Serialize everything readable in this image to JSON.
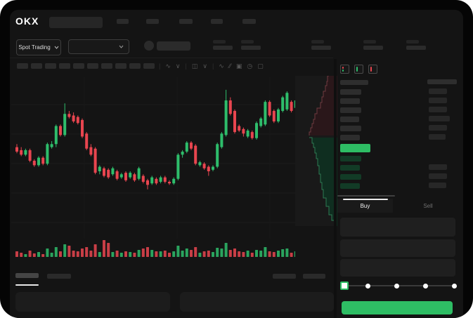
{
  "app": {
    "logo_text": "OKX"
  },
  "header": {
    "market_selector": {
      "label": "Spot Trading"
    },
    "nav_item_count": 5,
    "stat_pair_count": 5
  },
  "toolbar": {
    "timeframe_button_count": 10,
    "icons": [
      "indicators-wave-icon",
      "chevron-down-icon",
      "candle-style-icon",
      "chevron-down-icon",
      "line-chart-icon",
      "compare-icon",
      "camera-icon",
      "history-clock-icon",
      "fullscreen-icon"
    ]
  },
  "order_book": {
    "layout_icons": [
      "layout-both-icon",
      "layout-bids-icon",
      "layout-asks-icon"
    ],
    "asks_count": 6,
    "bids_count": 4,
    "ask_price_widths": [
      30,
      28,
      30,
      27,
      30,
      28
    ],
    "ask_amount_widths": [
      26,
      26,
      26,
      30,
      26,
      24
    ],
    "bid_price_widths": [
      30,
      28,
      30,
      28
    ],
    "bid_amount_widths": [
      0,
      26,
      26,
      25
    ]
  },
  "trade_panel": {
    "tabs": [
      {
        "label": "Buy"
      },
      {
        "label": "Sell"
      }
    ],
    "field_count": 3,
    "slider": {
      "stops": 5,
      "active_stop": 0
    }
  },
  "colors": {
    "up": "#2ebd6b",
    "down": "#e8454f",
    "last_price_bar": "#2ebd64",
    "bid_row_bar": "#123b26",
    "ask_row_bar": "#2d2d2d",
    "amount_bar": "#272727",
    "buy_button": "#2ebd64",
    "panel_bg": "#141414"
  },
  "chart_data": {
    "type": "candlestick",
    "title": "",
    "xlabel": "",
    "ylabel": "",
    "grid": true,
    "price_scale": {
      "min": 0,
      "max": 100
    },
    "candles": [
      [
        56,
        58,
        52,
        53
      ],
      [
        54,
        56,
        50,
        51
      ],
      [
        51,
        55,
        50,
        54
      ],
      [
        54,
        55,
        46,
        47
      ],
      [
        47,
        48,
        43,
        44
      ],
      [
        44,
        50,
        43,
        49
      ],
      [
        49,
        50,
        44,
        45
      ],
      [
        45,
        59,
        44,
        58
      ],
      [
        56,
        60,
        55,
        58
      ],
      [
        58,
        71,
        56,
        70
      ],
      [
        70,
        71,
        63,
        64
      ],
      [
        64,
        85,
        63,
        78
      ],
      [
        78,
        80,
        75,
        76
      ],
      [
        77,
        79,
        72,
        73
      ],
      [
        76,
        77,
        71,
        72
      ],
      [
        74,
        75,
        62,
        63
      ],
      [
        65,
        66,
        54,
        55
      ],
      [
        56,
        58,
        50,
        51
      ],
      [
        55,
        56,
        38,
        39
      ],
      [
        40,
        44,
        38,
        43
      ],
      [
        42,
        43,
        36,
        37
      ],
      [
        41,
        42,
        35,
        36
      ],
      [
        38,
        43,
        37,
        42
      ],
      [
        40,
        41,
        34,
        35
      ],
      [
        36,
        39,
        35,
        38
      ],
      [
        39,
        40,
        33,
        34
      ],
      [
        36,
        40,
        35,
        39
      ],
      [
        38,
        39,
        33,
        34
      ],
      [
        35,
        43,
        34,
        42
      ],
      [
        37,
        38,
        32,
        33
      ],
      [
        34,
        35,
        28,
        31
      ],
      [
        32,
        37,
        31,
        36
      ],
      [
        35,
        36,
        31,
        32
      ],
      [
        33,
        37,
        32,
        36
      ],
      [
        36,
        37,
        32,
        33
      ],
      [
        33,
        34,
        31,
        32
      ],
      [
        32,
        36,
        31,
        35
      ],
      [
        35,
        52,
        34,
        51
      ],
      [
        51,
        54,
        49,
        53
      ],
      [
        53,
        60,
        52,
        59
      ],
      [
        59,
        60,
        54,
        55
      ],
      [
        57,
        58,
        44,
        45
      ],
      [
        44,
        47,
        43,
        46
      ],
      [
        45,
        46,
        41,
        42
      ],
      [
        43,
        44,
        37,
        40
      ],
      [
        41,
        44,
        40,
        43
      ],
      [
        43,
        59,
        42,
        58
      ],
      [
        56,
        66,
        55,
        65
      ],
      [
        64,
        94,
        63,
        87
      ],
      [
        87,
        89,
        77,
        78
      ],
      [
        80,
        81,
        65,
        66
      ],
      [
        70,
        71,
        66,
        67
      ],
      [
        68,
        69,
        63,
        65
      ],
      [
        63,
        68,
        62,
        67
      ],
      [
        66,
        67,
        61,
        62
      ],
      [
        62,
        73,
        61,
        72
      ],
      [
        70,
        76,
        69,
        75
      ],
      [
        71,
        87,
        70,
        86
      ],
      [
        86,
        87,
        76,
        77
      ],
      [
        80,
        81,
        72,
        73
      ],
      [
        73,
        82,
        72,
        81
      ],
      [
        80,
        90,
        79,
        89
      ],
      [
        81,
        93,
        80,
        92
      ],
      [
        86,
        87,
        79,
        80
      ],
      [
        82,
        88,
        81,
        87
      ]
    ],
    "volumes": [
      8,
      6,
      4,
      9,
      5,
      7,
      4,
      12,
      6,
      14,
      8,
      18,
      16,
      9,
      8,
      12,
      14,
      9,
      18,
      7,
      24,
      20,
      7,
      9,
      6,
      8,
      7,
      6,
      10,
      12,
      14,
      10,
      8,
      8,
      9,
      6,
      8,
      16,
      9,
      12,
      10,
      14,
      6,
      8,
      9,
      7,
      13,
      12,
      20,
      10,
      12,
      8,
      7,
      9,
      6,
      10,
      9,
      14,
      8,
      7,
      9,
      11,
      12,
      6,
      8
    ],
    "depth": {
      "asks": [
        [
          48,
          0
        ],
        [
          46,
          8
        ],
        [
          45,
          14
        ],
        [
          43,
          22
        ],
        [
          40,
          30
        ],
        [
          38,
          38
        ],
        [
          36,
          46
        ],
        [
          31,
          54
        ],
        [
          28,
          62
        ],
        [
          26,
          68
        ],
        [
          24,
          74
        ],
        [
          22,
          80
        ],
        [
          20,
          85
        ]
      ],
      "bids": [
        [
          20,
          88
        ],
        [
          24,
          96
        ],
        [
          26,
          102
        ],
        [
          28,
          110
        ],
        [
          30,
          118
        ],
        [
          32,
          128
        ],
        [
          34,
          140
        ],
        [
          36,
          152
        ],
        [
          38,
          162
        ],
        [
          40,
          174
        ],
        [
          44,
          186
        ],
        [
          48,
          198
        ],
        [
          52,
          206
        ],
        [
          56,
          214
        ]
      ]
    }
  }
}
